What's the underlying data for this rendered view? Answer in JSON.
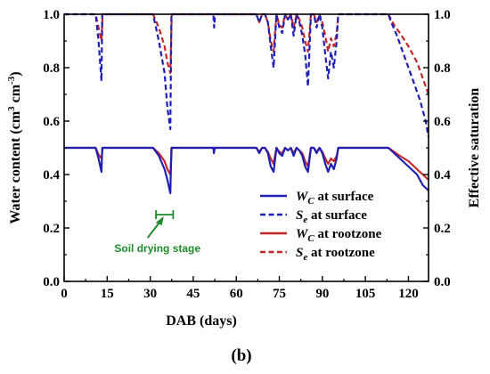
{
  "chart_data": {
    "type": "line",
    "xlabel": "DAB (days)",
    "ylabel": "Water content (cm3 cm-3)",
    "ylabel_parts": [
      "Water content (cm",
      "3",
      " cm",
      "-3",
      ")"
    ],
    "y2label": "Effective saturation",
    "panel_label": "(b)",
    "xlim": [
      0,
      127
    ],
    "ylim": [
      0.0,
      1.0
    ],
    "y2lim": [
      0.0,
      1.0
    ],
    "xticks": [
      "0",
      "15",
      "30",
      "45",
      "60",
      "75",
      "90",
      "105",
      "120"
    ],
    "yticks": [
      "0.0",
      "0.2",
      "0.4",
      "0.6",
      "0.8",
      "1.0"
    ],
    "y2ticks": [
      "0.0",
      "0.2",
      "0.4",
      "0.6",
      "0.8",
      "1.0"
    ],
    "grid": false,
    "legend_position": "bottom-right",
    "colors": {
      "surface": "#1f1fb4",
      "rootzone": "#c0282c",
      "annotation": "#1e8c2a"
    },
    "series": [
      {
        "key": "wc_surface",
        "label_main": "W",
        "label_sub": "C",
        "label_rest": " at surface",
        "axis": "left",
        "style": "solid",
        "color": "#1f1fb4",
        "x": [
          0,
          11,
          12,
          13,
          13.3,
          14,
          31,
          33,
          35,
          36,
          37,
          37.4,
          38,
          52,
          52.2,
          52.5,
          66,
          67,
          68,
          69,
          70,
          71,
          72,
          73,
          74,
          75,
          76,
          77,
          78,
          79,
          80,
          81,
          82,
          83,
          84,
          85,
          86,
          87,
          88,
          89,
          90,
          91,
          92,
          93,
          94,
          95,
          95.5,
          113,
          115,
          117,
          120,
          123,
          125,
          127
        ],
        "y": [
          0.5,
          0.5,
          0.46,
          0.41,
          0.5,
          0.5,
          0.5,
          0.47,
          0.42,
          0.38,
          0.33,
          0.5,
          0.5,
          0.5,
          0.48,
          0.5,
          0.5,
          0.5,
          0.48,
          0.5,
          0.5,
          0.48,
          0.43,
          0.41,
          0.5,
          0.48,
          0.47,
          0.5,
          0.49,
          0.5,
          0.47,
          0.5,
          0.49,
          0.47,
          0.43,
          0.41,
          0.5,
          0.5,
          0.48,
          0.5,
          0.48,
          0.44,
          0.41,
          0.44,
          0.42,
          0.46,
          0.5,
          0.5,
          0.48,
          0.46,
          0.43,
          0.4,
          0.36,
          0.34
        ]
      },
      {
        "key": "se_surface",
        "label_main": "S",
        "label_sub": "e",
        "label_rest": " at surface",
        "axis": "right",
        "style": "dashed",
        "color": "#1f1fb4",
        "x": [
          0,
          11,
          12,
          13,
          13.3,
          14,
          31,
          33,
          35,
          36,
          37,
          37.4,
          38,
          52,
          52.3,
          52.6,
          66,
          67,
          68,
          69,
          70,
          71,
          72,
          73,
          74,
          75,
          76,
          77,
          78,
          79,
          80,
          81,
          82,
          83,
          84,
          85,
          86,
          87,
          88,
          89,
          90,
          91,
          92,
          93,
          94,
          95,
          95.5,
          113,
          114,
          116,
          118,
          120,
          122,
          124,
          126,
          127
        ],
        "y": [
          1,
          1,
          0.9,
          0.75,
          1,
          1,
          1,
          0.9,
          0.78,
          0.65,
          0.57,
          1,
          1,
          1,
          0.95,
          1,
          1,
          1,
          0.97,
          1,
          1,
          0.97,
          0.88,
          0.8,
          1,
          0.95,
          0.93,
          1,
          0.98,
          1,
          0.92,
          1,
          0.97,
          0.92,
          0.85,
          0.73,
          1,
          1,
          0.95,
          1,
          0.95,
          0.85,
          0.76,
          0.86,
          0.8,
          0.9,
          1,
          1,
          0.97,
          0.92,
          0.86,
          0.8,
          0.74,
          0.68,
          0.6,
          0.54
        ]
      },
      {
        "key": "wc_rootzone",
        "label_main": "W",
        "label_sub": "C",
        "label_rest": " at rootzone",
        "axis": "left",
        "style": "solid",
        "color": "#c0282c",
        "x": [
          0,
          11,
          12,
          13,
          13.4,
          14,
          31,
          33,
          35,
          36,
          37,
          37.5,
          38,
          66,
          67,
          68,
          69,
          70,
          71,
          72,
          73,
          74,
          75,
          76,
          77,
          78,
          79,
          80,
          81,
          82,
          83,
          84,
          85,
          86,
          87,
          88,
          89,
          90,
          91,
          92,
          93,
          94,
          95,
          95.6,
          113,
          115,
          117,
          120,
          123,
          125,
          127
        ],
        "y": [
          0.5,
          0.5,
          0.475,
          0.46,
          0.5,
          0.5,
          0.5,
          0.48,
          0.45,
          0.42,
          0.4,
          0.5,
          0.5,
          0.5,
          0.5,
          0.485,
          0.5,
          0.5,
          0.485,
          0.46,
          0.44,
          0.5,
          0.485,
          0.48,
          0.5,
          0.49,
          0.5,
          0.48,
          0.5,
          0.49,
          0.48,
          0.45,
          0.43,
          0.5,
          0.5,
          0.485,
          0.5,
          0.485,
          0.46,
          0.44,
          0.46,
          0.45,
          0.47,
          0.5,
          0.5,
          0.485,
          0.47,
          0.45,
          0.42,
          0.4,
          0.38
        ]
      },
      {
        "key": "se_rootzone",
        "label_main": "S",
        "label_sub": "e",
        "label_rest": " at rootzone",
        "axis": "right",
        "style": "dashed",
        "color": "#c0282c",
        "x": [
          0,
          11,
          12,
          13,
          13.4,
          14,
          31,
          33,
          35,
          36,
          37,
          37.5,
          38,
          66,
          67,
          68,
          69,
          70,
          71,
          72,
          73,
          74,
          75,
          76,
          77,
          78,
          79,
          80,
          81,
          82,
          83,
          84,
          85,
          86,
          87,
          88,
          89,
          90,
          91,
          92,
          93,
          94,
          95,
          95.6,
          113,
          115,
          117,
          120,
          123,
          125,
          127
        ],
        "y": [
          1,
          1,
          0.95,
          0.9,
          1,
          1,
          1,
          0.95,
          0.88,
          0.82,
          0.78,
          1,
          1,
          1,
          1,
          0.97,
          1,
          1,
          0.97,
          0.9,
          0.86,
          1,
          0.96,
          0.95,
          1,
          0.98,
          1,
          0.95,
          1,
          0.98,
          0.95,
          0.9,
          0.86,
          1,
          1,
          0.97,
          1,
          0.97,
          0.92,
          0.86,
          0.91,
          0.88,
          0.93,
          1,
          1,
          0.96,
          0.93,
          0.88,
          0.82,
          0.76,
          0.7
        ]
      }
    ],
    "annotations": [
      {
        "text": "Soil drying stage",
        "range_x": [
          32,
          38
        ],
        "y": 0.25,
        "color": "#1e8c2a"
      }
    ]
  }
}
